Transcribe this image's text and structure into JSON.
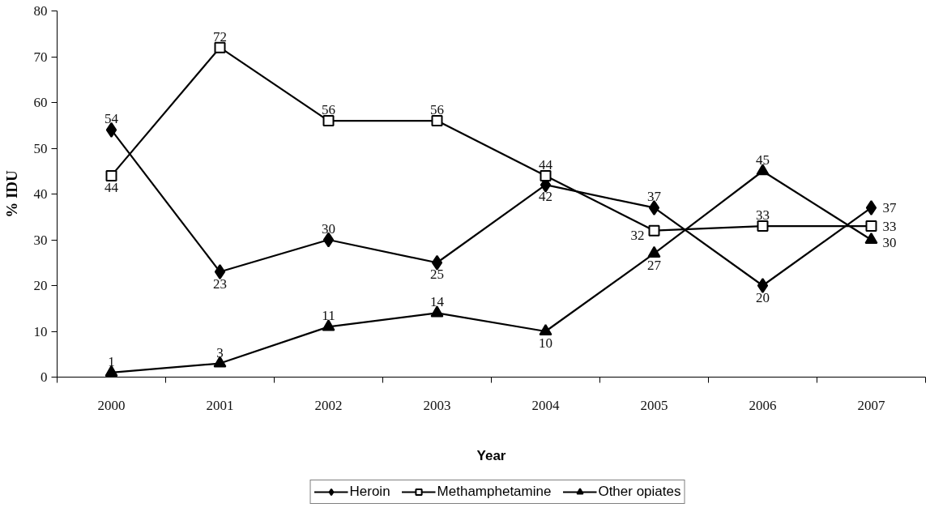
{
  "chart_data": {
    "type": "line",
    "xlabel": "Year",
    "ylabel": "% IDU",
    "categories": [
      "2000",
      "2001",
      "2002",
      "2003",
      "2004",
      "2005",
      "2006",
      "2007"
    ],
    "ylim": [
      0,
      80
    ],
    "yticks": [
      0,
      10,
      20,
      30,
      40,
      50,
      60,
      70,
      80
    ],
    "data_labels": true,
    "legend": "bottom",
    "series": [
      {
        "name": "Heroin",
        "color": "#000000",
        "marker": "diamond",
        "values": [
          54,
          23,
          30,
          25,
          42,
          37,
          20,
          37
        ]
      },
      {
        "name": "Methamphetamine",
        "color": "#000000",
        "marker": "square",
        "values": [
          44,
          72,
          56,
          56,
          44,
          32,
          33,
          33
        ]
      },
      {
        "name": "Other opiates",
        "color": "#000000",
        "marker": "triangle",
        "values": [
          1,
          3,
          11,
          14,
          10,
          27,
          45,
          30
        ]
      }
    ]
  }
}
